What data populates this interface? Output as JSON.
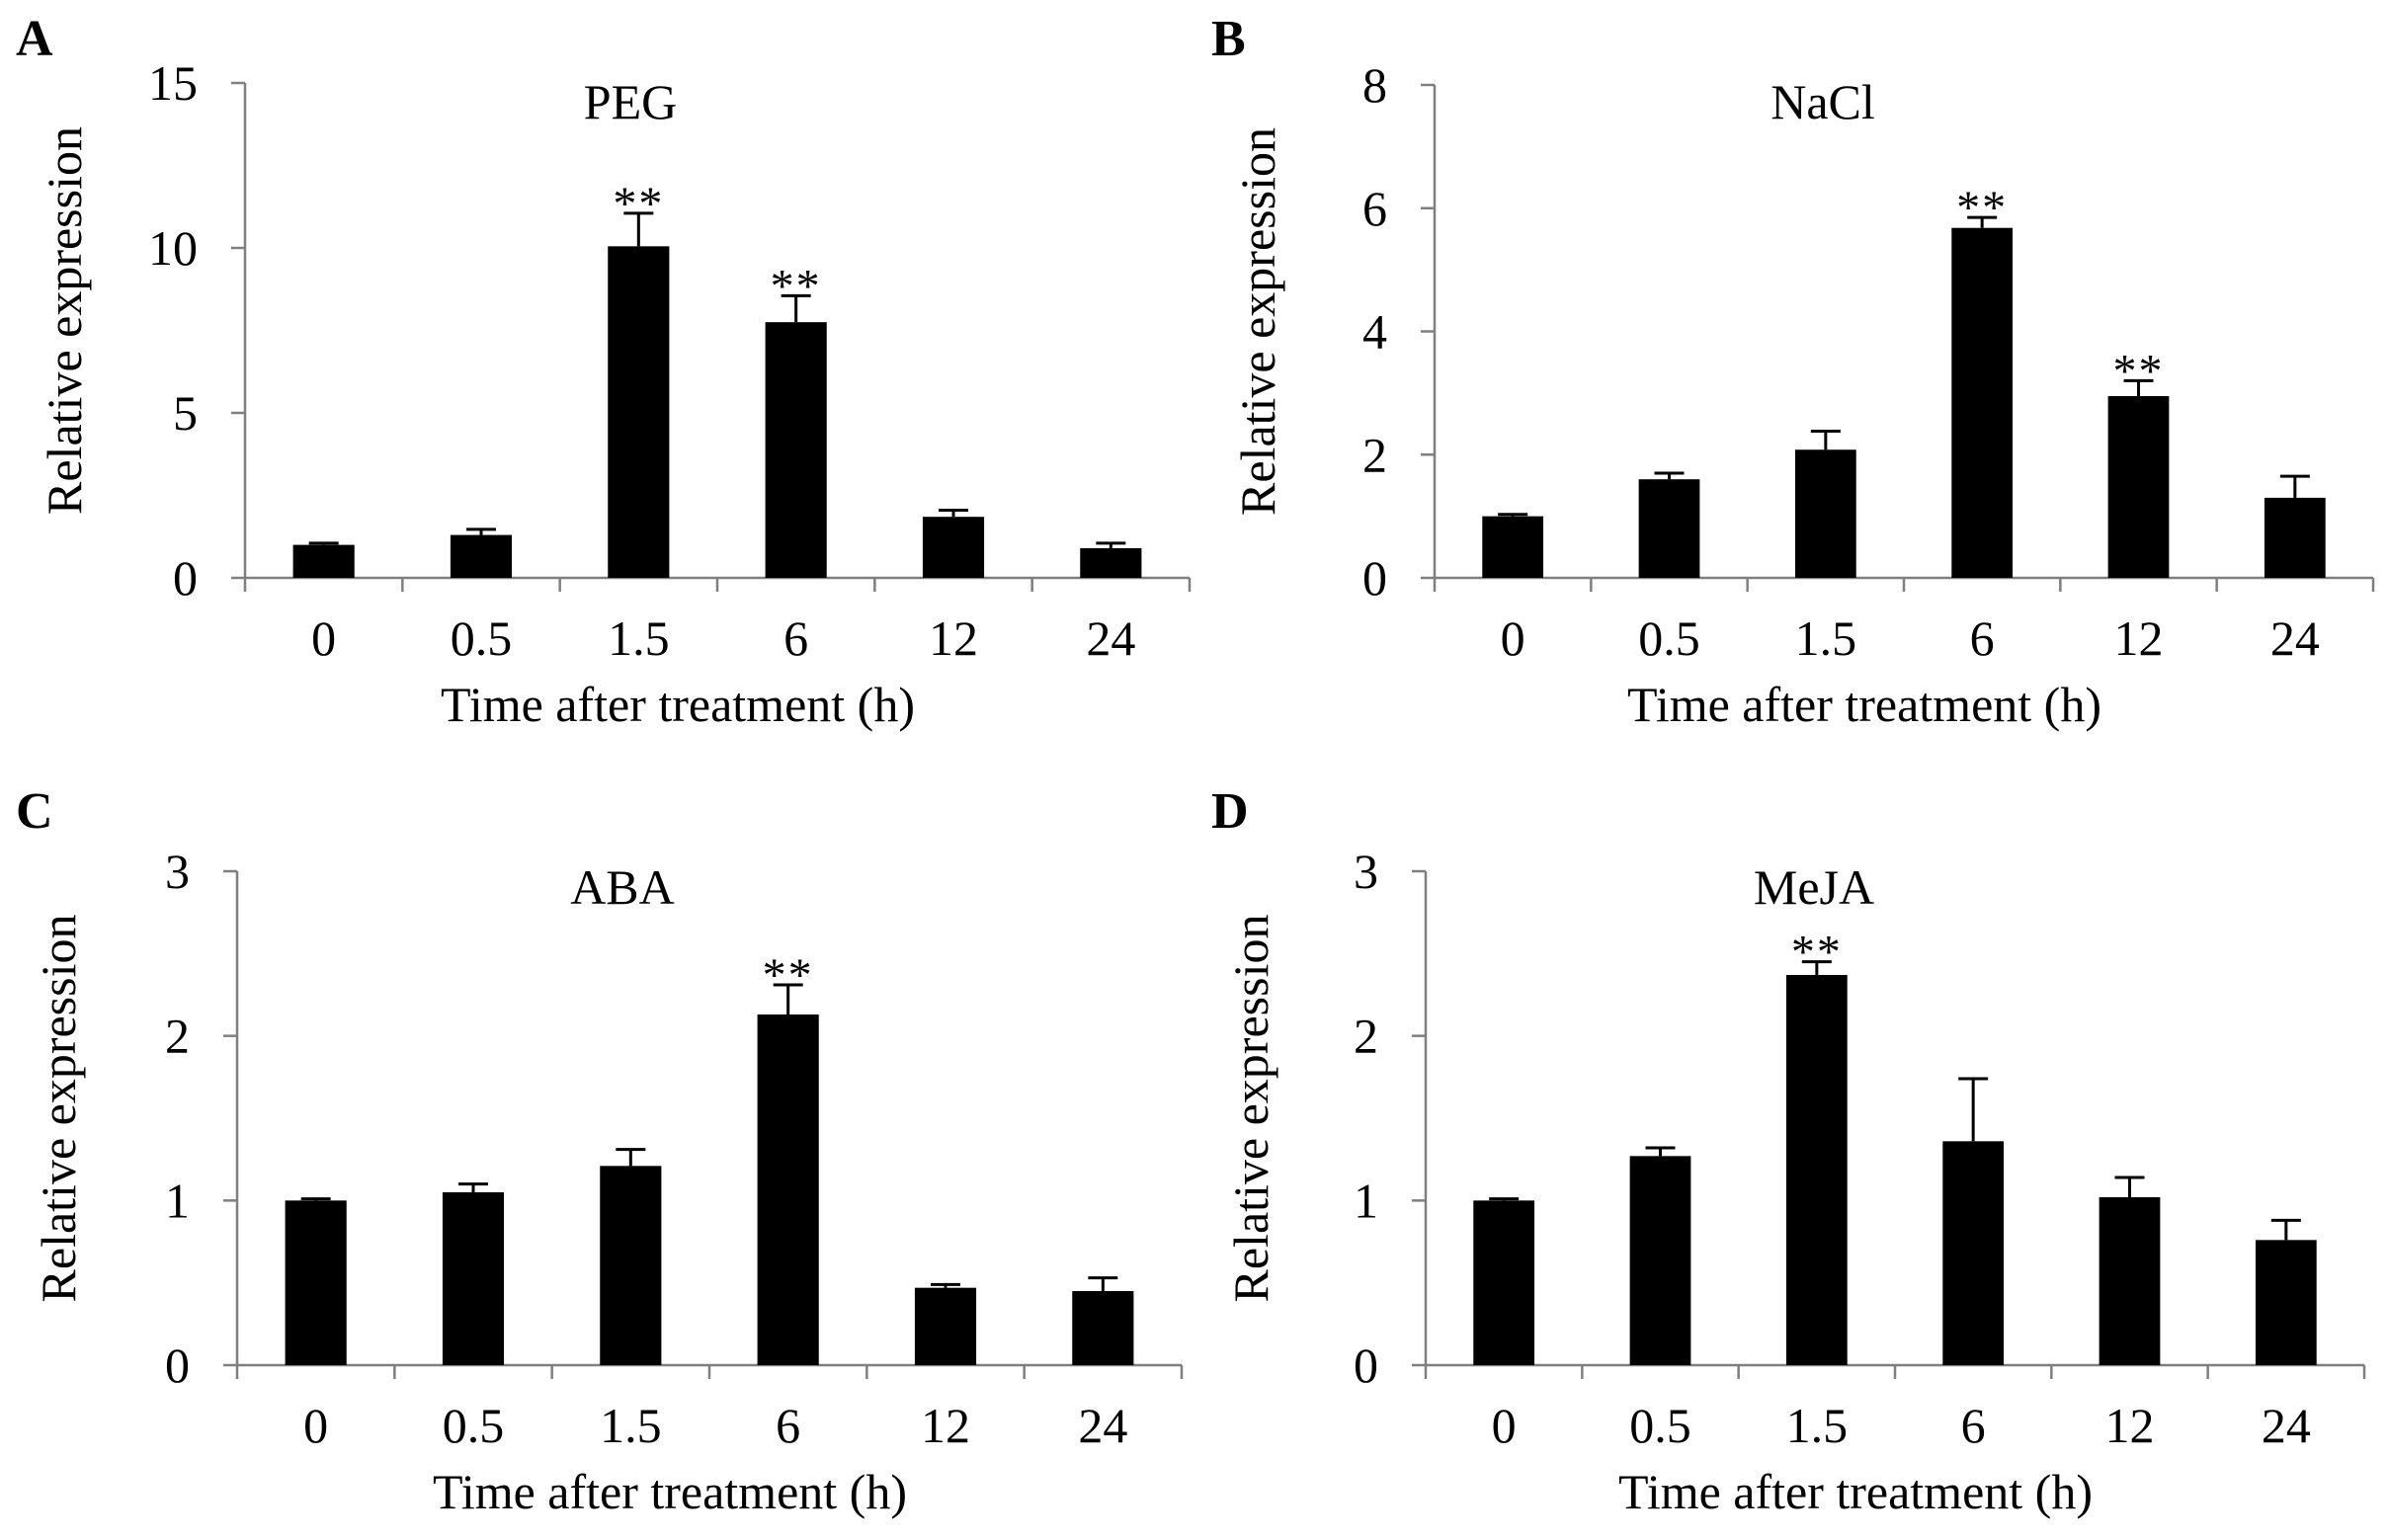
{
  "colors": {
    "bar": "#000000",
    "axis": "#7f7f7f",
    "text": "#000000",
    "background": "#ffffff"
  },
  "chart_data": [
    {
      "panel": "A",
      "type": "bar",
      "title": "PEG",
      "xlabel": "Time after treatment (h)",
      "ylabel": "Relative expression",
      "categories": [
        "0",
        "0.5",
        "1.5",
        "6",
        "12",
        "24"
      ],
      "values": [
        1.0,
        1.3,
        10.05,
        7.75,
        1.85,
        0.9
      ],
      "errors": [
        0.05,
        0.17,
        1.0,
        0.8,
        0.2,
        0.15
      ],
      "significance": [
        "",
        "",
        "**",
        "**",
        "",
        ""
      ],
      "ylim": [
        0,
        15
      ],
      "yticks": [
        0,
        5,
        10,
        15
      ],
      "grid": false,
      "legend": "none"
    },
    {
      "panel": "B",
      "type": "bar",
      "title": "NaCl",
      "xlabel": "Time after treatment (h)",
      "ylabel": "Relative expression",
      "categories": [
        "0",
        "0.5",
        "1.5",
        "6",
        "12",
        "24"
      ],
      "values": [
        1.0,
        1.6,
        2.08,
        5.68,
        2.95,
        1.3
      ],
      "errors": [
        0.03,
        0.1,
        0.3,
        0.17,
        0.25,
        0.35
      ],
      "significance": [
        "",
        "",
        "",
        "**",
        "**",
        ""
      ],
      "ylim": [
        0,
        8
      ],
      "yticks": [
        0,
        2,
        4,
        6,
        8
      ],
      "grid": false,
      "legend": "none"
    },
    {
      "panel": "C",
      "type": "bar",
      "title": "ABA",
      "xlabel": "Time after treatment (h)",
      "ylabel": "Relative expression",
      "categories": [
        "0",
        "0.5",
        "1.5",
        "6",
        "12",
        "24"
      ],
      "values": [
        1.0,
        1.05,
        1.21,
        2.13,
        0.47,
        0.45
      ],
      "errors": [
        0.01,
        0.05,
        0.1,
        0.18,
        0.02,
        0.08
      ],
      "significance": [
        "",
        "",
        "",
        "**",
        "",
        ""
      ],
      "ylim": [
        0,
        3
      ],
      "yticks": [
        0,
        1,
        2,
        3
      ],
      "grid": false,
      "legend": "none"
    },
    {
      "panel": "D",
      "type": "bar",
      "title": "MeJA",
      "xlabel": "Time after treatment (h)",
      "ylabel": "Relative expression",
      "categories": [
        "0",
        "0.5",
        "1.5",
        "6",
        "12",
        "24"
      ],
      "values": [
        1.0,
        1.27,
        2.37,
        1.36,
        1.02,
        0.76
      ],
      "errors": [
        0.01,
        0.05,
        0.08,
        0.38,
        0.12,
        0.12
      ],
      "significance": [
        "",
        "",
        "**",
        "",
        "",
        ""
      ],
      "ylim": [
        0,
        3
      ],
      "yticks": [
        0,
        1,
        2,
        3
      ],
      "grid": false,
      "legend": "none"
    }
  ]
}
